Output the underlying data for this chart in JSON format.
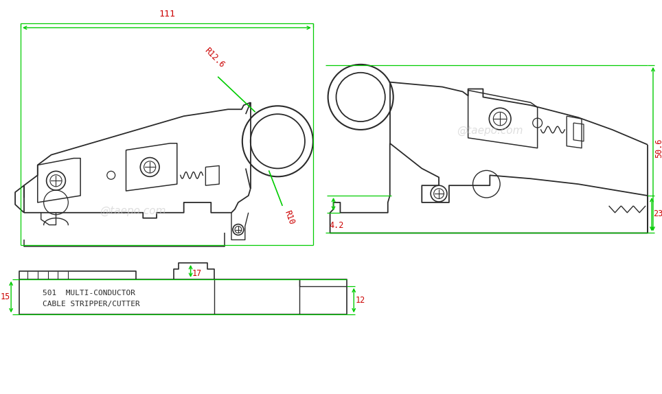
{
  "bg_color": "#ffffff",
  "line_color": "#2a2a2a",
  "dim_color": "#00cc00",
  "red_color": "#cc0000",
  "watermark_color": "#c8c8c8",
  "watermark_text": "@taepo.com",
  "dim_111": "111",
  "dim_50_6": "50.6",
  "dim_23": "23",
  "dim_4_2": "4.2",
  "dim_R12_6": "R12.6",
  "dim_R10": "R10",
  "dim_15": "15",
  "dim_17": "17",
  "dim_12": "12",
  "label_line1": "501  MULTI-CONDUCTOR",
  "label_line2": "CABLE STRIPPER/CUTTER"
}
